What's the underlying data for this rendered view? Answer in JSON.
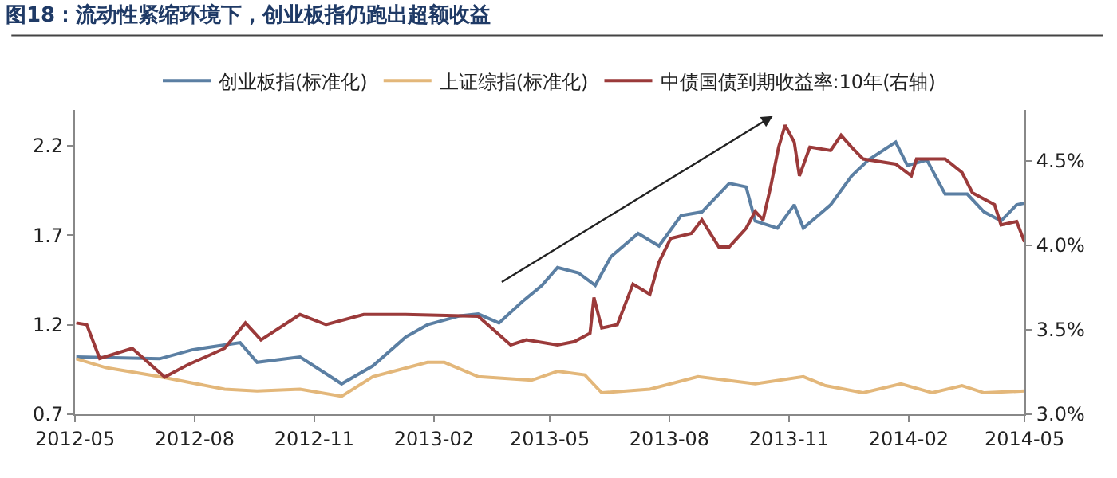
{
  "chart_data": {
    "type": "line",
    "title": "图18：流动性紧缩环境下，创业板指仍跑出超额收益",
    "xlim": [
      "2012-05-01",
      "2014-05-01"
    ],
    "xticks": [
      {
        "value": "2012-05-01",
        "label": "2012-05"
      },
      {
        "value": "2012-08-01",
        "label": "2012-08"
      },
      {
        "value": "2012-11-01",
        "label": "2012-11"
      },
      {
        "value": "2013-02-01",
        "label": "2013-02"
      },
      {
        "value": "2013-05-01",
        "label": "2013-05"
      },
      {
        "value": "2013-08-01",
        "label": "2013-08"
      },
      {
        "value": "2013-11-01",
        "label": "2013-11"
      },
      {
        "value": "2014-02-01",
        "label": "2014-02"
      },
      {
        "value": "2014-05-01",
        "label": "2014-05"
      }
    ],
    "ylim": [
      0.7,
      2.4
    ],
    "yticks": [
      0.7,
      1.2,
      1.7,
      2.2
    ],
    "y2lim": [
      3.0,
      4.8
    ],
    "y2ticks": [
      {
        "value": 3.0,
        "label": "3.0%"
      },
      {
        "value": 3.5,
        "label": "3.5%"
      },
      {
        "value": 4.0,
        "label": "4.0%"
      },
      {
        "value": 4.5,
        "label": "4.5%"
      }
    ],
    "grid": false,
    "legend": "top",
    "marker": "none",
    "line_style": "solid",
    "series": [
      {
        "name": "创业板指(标准化)",
        "color": "#5b7fa3",
        "x": [
          "2012-05-02",
          "2012-07-05",
          "2012-07-30",
          "2012-09-05",
          "2012-09-18",
          "2012-10-21",
          "2012-11-22",
          "2012-12-16",
          "2013-01-10",
          "2013-01-27",
          "2013-02-21",
          "2013-03-07",
          "2013-03-23",
          "2013-04-10",
          "2013-04-25",
          "2013-05-07",
          "2013-05-23",
          "2013-06-05",
          "2013-06-17",
          "2013-07-08",
          "2013-07-24",
          "2013-08-10",
          "2013-08-26",
          "2013-09-16",
          "2013-09-29",
          "2013-10-06",
          "2013-10-23",
          "2013-11-05",
          "2013-11-12",
          "2013-12-03",
          "2013-12-19",
          "2014-01-01",
          "2014-01-22",
          "2014-01-31",
          "2014-02-15",
          "2014-03-01",
          "2014-03-18",
          "2014-03-31",
          "2014-04-13",
          "2014-04-25",
          "2014-05-01"
        ],
        "values": [
          1.02,
          1.01,
          1.06,
          1.1,
          0.99,
          1.02,
          0.87,
          0.97,
          1.13,
          1.2,
          1.25,
          1.26,
          1.21,
          1.33,
          1.42,
          1.52,
          1.49,
          1.42,
          1.58,
          1.71,
          1.64,
          1.81,
          1.83,
          1.99,
          1.97,
          1.78,
          1.74,
          1.87,
          1.74,
          1.87,
          2.03,
          2.12,
          2.22,
          2.09,
          2.12,
          1.93,
          1.93,
          1.83,
          1.78,
          1.87,
          1.88
        ]
      },
      {
        "name": "上证综指(标准化)",
        "color": "#e3b77a",
        "x": [
          "2012-05-02",
          "2012-05-25",
          "2012-07-05",
          "2012-08-24",
          "2012-09-18",
          "2012-10-21",
          "2012-11-22",
          "2012-12-16",
          "2013-01-27",
          "2013-02-09",
          "2013-03-07",
          "2013-04-17",
          "2013-05-07",
          "2013-05-28",
          "2013-06-10",
          "2013-07-17",
          "2013-08-23",
          "2013-10-06",
          "2013-11-12",
          "2013-11-29",
          "2013-12-28",
          "2014-01-26",
          "2014-02-19",
          "2014-03-14",
          "2014-03-31",
          "2014-05-01"
        ],
        "values": [
          1.01,
          0.96,
          0.91,
          0.84,
          0.83,
          0.84,
          0.8,
          0.91,
          0.99,
          0.99,
          0.91,
          0.89,
          0.94,
          0.92,
          0.82,
          0.84,
          0.91,
          0.87,
          0.91,
          0.86,
          0.82,
          0.87,
          0.82,
          0.86,
          0.82,
          0.83
        ]
      },
      {
        "name": "中债国债到期收益率:10年(右轴)",
        "color": "#9b3a3a",
        "axis": "y2",
        "x": [
          "2012-05-02",
          "2012-05-10",
          "2012-05-20",
          "2012-06-14",
          "2012-07-09",
          "2012-07-26",
          "2012-08-24",
          "2012-09-09",
          "2012-09-21",
          "2012-10-21",
          "2012-11-10",
          "2012-12-09",
          "2013-01-10",
          "2013-03-07",
          "2013-04-01",
          "2013-04-13",
          "2013-05-07",
          "2013-05-20",
          "2013-06-01",
          "2013-06-04",
          "2013-06-10",
          "2013-06-22",
          "2013-07-04",
          "2013-07-17",
          "2013-07-24",
          "2013-08-02",
          "2013-08-18",
          "2013-08-26",
          "2013-09-08",
          "2013-09-16",
          "2013-09-29",
          "2013-10-06",
          "2013-10-12",
          "2013-10-18",
          "2013-10-24",
          "2013-10-29",
          "2013-11-05",
          "2013-11-09",
          "2013-11-17",
          "2013-12-03",
          "2013-12-11",
          "2013-12-19",
          "2013-12-28",
          "2014-01-22",
          "2014-02-03",
          "2014-02-07",
          "2014-03-01",
          "2014-03-14",
          "2014-03-22",
          "2014-04-08",
          "2014-04-13",
          "2014-04-25",
          "2014-05-01"
        ],
        "values": [
          3.54,
          3.53,
          3.33,
          3.39,
          3.22,
          3.29,
          3.39,
          3.54,
          3.44,
          3.59,
          3.53,
          3.59,
          3.59,
          3.58,
          3.41,
          3.44,
          3.41,
          3.43,
          3.48,
          3.69,
          3.51,
          3.53,
          3.77,
          3.71,
          3.9,
          4.04,
          4.07,
          4.15,
          3.99,
          3.99,
          4.1,
          4.2,
          4.15,
          4.35,
          4.58,
          4.71,
          4.61,
          4.41,
          4.58,
          4.56,
          4.65,
          4.58,
          4.51,
          4.48,
          4.41,
          4.51,
          4.51,
          4.43,
          4.31,
          4.24,
          4.12,
          4.14,
          4.02
        ]
      }
    ]
  }
}
